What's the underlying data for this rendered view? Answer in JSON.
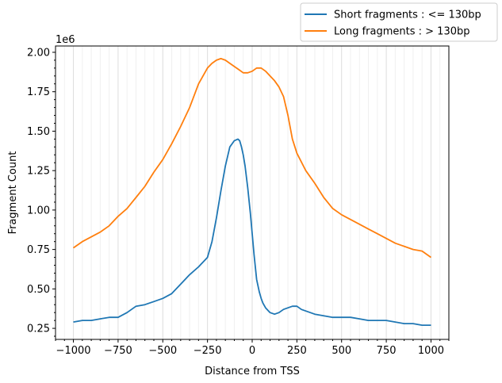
{
  "chart_data": {
    "type": "line",
    "title": "",
    "xlabel": "Distance from TSS",
    "ylabel": "Fragment Count",
    "y_offset_label": "1e6",
    "xlim": [
      -1100,
      1100
    ],
    "ylim": [
      0.18,
      2.04
    ],
    "x_ticks": [
      -1000,
      -750,
      -500,
      -250,
      0,
      250,
      500,
      750,
      1000
    ],
    "x_tick_labels": [
      "−1000",
      "−750",
      "−500",
      "−250",
      "0",
      "250",
      "500",
      "750",
      "1000"
    ],
    "y_ticks": [
      0.25,
      0.5,
      0.75,
      1.0,
      1.25,
      1.5,
      1.75,
      2.0
    ],
    "y_tick_labels": [
      "0.25",
      "0.50",
      "0.75",
      "1.00",
      "1.25",
      "1.50",
      "1.75",
      "2.00"
    ],
    "grid": "vertical major and minor",
    "legend_position": "above plot, top-right",
    "series": [
      {
        "name": "Short fragments : <= 130bp",
        "color": "#1f77b4",
        "x": [
          -1000,
          -950,
          -900,
          -850,
          -800,
          -750,
          -700,
          -650,
          -600,
          -550,
          -500,
          -450,
          -400,
          -350,
          -300,
          -250,
          -225,
          -200,
          -175,
          -150,
          -125,
          -100,
          -80,
          -70,
          -60,
          -50,
          -40,
          -25,
          -10,
          0,
          10,
          25,
          40,
          50,
          60,
          75,
          100,
          125,
          150,
          175,
          200,
          225,
          250,
          275,
          300,
          350,
          400,
          450,
          500,
          550,
          600,
          650,
          700,
          750,
          800,
          850,
          900,
          950,
          1000
        ],
        "values": [
          0.29,
          0.3,
          0.3,
          0.31,
          0.32,
          0.32,
          0.35,
          0.39,
          0.4,
          0.42,
          0.44,
          0.47,
          0.53,
          0.59,
          0.64,
          0.7,
          0.8,
          0.95,
          1.12,
          1.28,
          1.4,
          1.44,
          1.45,
          1.44,
          1.4,
          1.35,
          1.28,
          1.14,
          0.98,
          0.85,
          0.72,
          0.56,
          0.48,
          0.44,
          0.41,
          0.38,
          0.35,
          0.34,
          0.35,
          0.37,
          0.38,
          0.39,
          0.39,
          0.37,
          0.36,
          0.34,
          0.33,
          0.32,
          0.32,
          0.32,
          0.31,
          0.3,
          0.3,
          0.3,
          0.29,
          0.28,
          0.28,
          0.27,
          0.27
        ]
      },
      {
        "name": "Long fragments : > 130bp",
        "color": "#ff7f0e",
        "x": [
          -1000,
          -950,
          -900,
          -850,
          -800,
          -750,
          -700,
          -650,
          -600,
          -550,
          -500,
          -450,
          -400,
          -350,
          -300,
          -250,
          -225,
          -200,
          -175,
          -150,
          -125,
          -100,
          -75,
          -50,
          -25,
          0,
          25,
          50,
          75,
          100,
          125,
          150,
          175,
          200,
          225,
          250,
          300,
          350,
          400,
          450,
          500,
          550,
          600,
          650,
          700,
          750,
          800,
          850,
          900,
          950,
          1000
        ],
        "values": [
          0.76,
          0.8,
          0.83,
          0.86,
          0.9,
          0.96,
          1.01,
          1.08,
          1.15,
          1.24,
          1.32,
          1.42,
          1.53,
          1.65,
          1.8,
          1.9,
          1.93,
          1.95,
          1.96,
          1.95,
          1.93,
          1.91,
          1.89,
          1.87,
          1.87,
          1.88,
          1.9,
          1.9,
          1.88,
          1.85,
          1.82,
          1.78,
          1.72,
          1.6,
          1.45,
          1.36,
          1.25,
          1.17,
          1.08,
          1.01,
          0.97,
          0.94,
          0.91,
          0.88,
          0.85,
          0.82,
          0.79,
          0.77,
          0.75,
          0.74,
          0.7
        ]
      }
    ]
  }
}
